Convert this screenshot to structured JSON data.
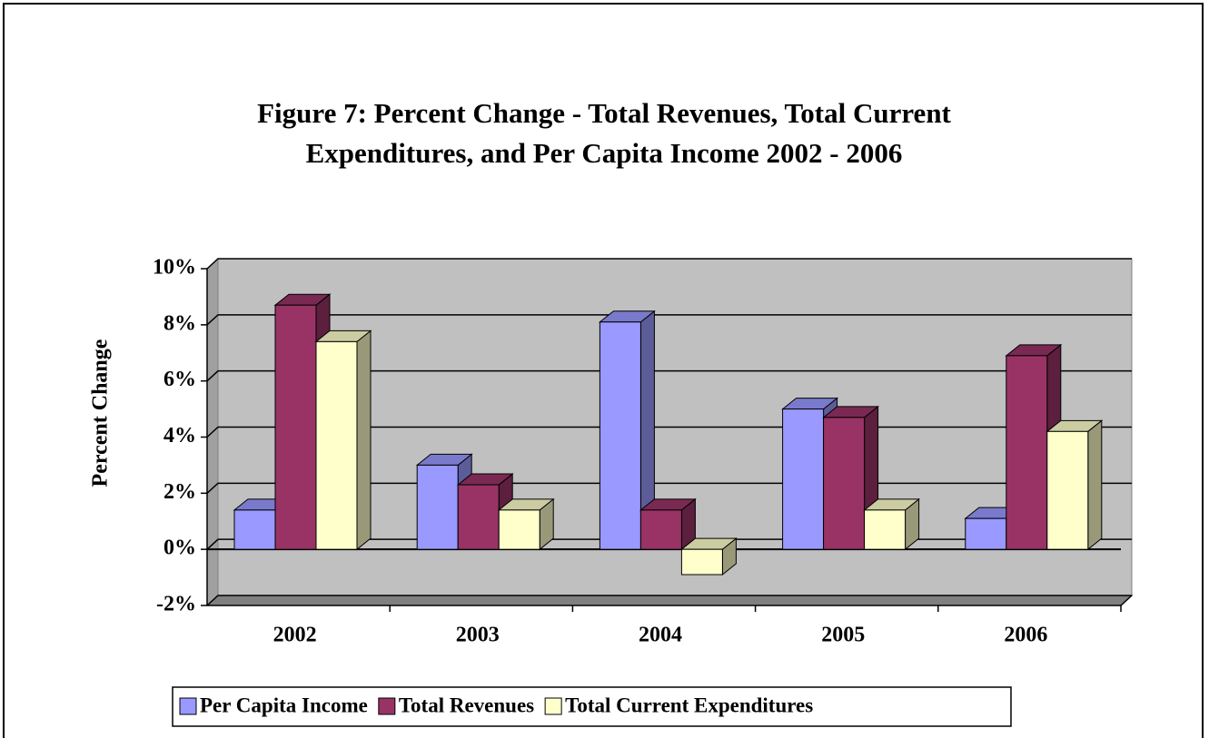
{
  "chart_data": {
    "type": "bar3d",
    "title": [
      "Figure 7:  Percent Change - Total Revenues, Total Current",
      "Expenditures, and Per Capita Income 2002 - 2006"
    ],
    "y_label": "Percent Change",
    "categories": [
      "2002",
      "2003",
      "2004",
      "2005",
      "2006"
    ],
    "series": [
      {
        "name": "Per Capita Income",
        "color": "#9999ff",
        "values": [
          1.4,
          3.0,
          8.1,
          5.0,
          1.1
        ]
      },
      {
        "name": "Total Revenues",
        "color": "#993366",
        "values": [
          8.7,
          2.3,
          1.4,
          4.7,
          6.9
        ]
      },
      {
        "name": "Total Current Expenditures",
        "color": "#ffffcc",
        "values": [
          7.4,
          1.4,
          -0.9,
          1.4,
          4.2
        ]
      }
    ],
    "ylim": [
      -2,
      10
    ],
    "yticks": [
      {
        "value": -2,
        "label": "-2%"
      },
      {
        "value": 0,
        "label": "0%"
      },
      {
        "value": 2,
        "label": "2%"
      },
      {
        "value": 4,
        "label": "4%"
      },
      {
        "value": 6,
        "label": "6%"
      },
      {
        "value": 8,
        "label": "8%"
      },
      {
        "value": 10,
        "label": "10%"
      }
    ],
    "grid": true,
    "legend": "bottom"
  }
}
